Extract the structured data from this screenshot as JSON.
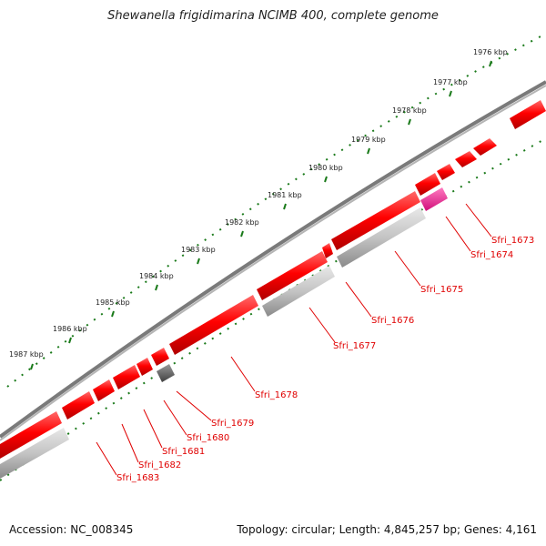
{
  "title": "Shewanella frigidimarina NCIMB 400, complete genome",
  "footer": {
    "accession": "Accession: NC_008345",
    "summary": "Topology: circular; Length: 4,845,257 bp; Genes: 4,161"
  },
  "colors": {
    "backbone": "#7a7a7a",
    "gene_red": "#ff0000",
    "gene_gray": "#c4c4c4",
    "gene_dark": "#606060",
    "gene_pink": "#ff1493",
    "tick_green": "#1a7a1a",
    "label_red": "#e00000"
  },
  "scale_labels": [
    "1976 kbp",
    "1977 kbp",
    "1978 kbp",
    "1979 kbp",
    "1980 kbp",
    "1981 kbp",
    "1982 kbp",
    "1983 kbp",
    "1984 kbp",
    "1985 kbp",
    "1986 kbp",
    "1987 kbp"
  ],
  "gene_labels": [
    "Sfri_1673",
    "Sfri_1674",
    "Sfri_1675",
    "Sfri_1676",
    "Sfri_1677",
    "Sfri_1678",
    "Sfri_1679",
    "Sfri_1680",
    "Sfri_1681",
    "Sfri_1682",
    "Sfri_1683"
  ]
}
